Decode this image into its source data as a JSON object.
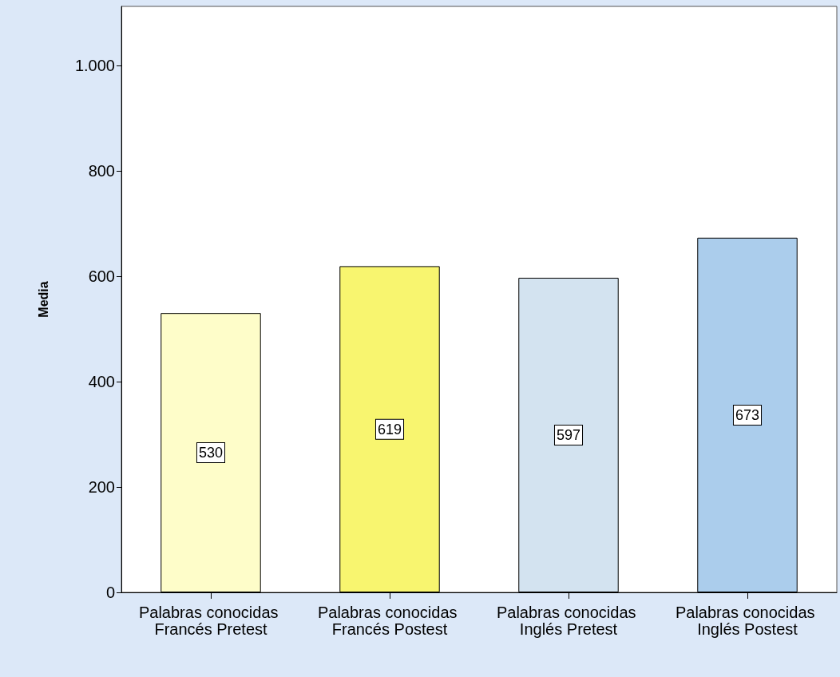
{
  "chart_data": {
    "type": "bar",
    "ylabel": "Media",
    "categories": [
      "Palabras conocidas Francés Pretest",
      "Palabras conocidas Francés Postest",
      "Palabras conocidas Inglés Pretest",
      "Palabras conocidas Inglés Postest"
    ],
    "values": [
      530,
      619,
      597,
      673
    ],
    "colors": [
      "#fefdc9",
      "#f8f56f",
      "#d3e3f0",
      "#abcdec"
    ],
    "ylim": [
      0,
      1112
    ],
    "yticks": [
      0,
      200,
      400,
      600,
      800,
      {
        "value": 1000,
        "label": "1.000"
      }
    ],
    "data_labels": true,
    "grid": false
  }
}
